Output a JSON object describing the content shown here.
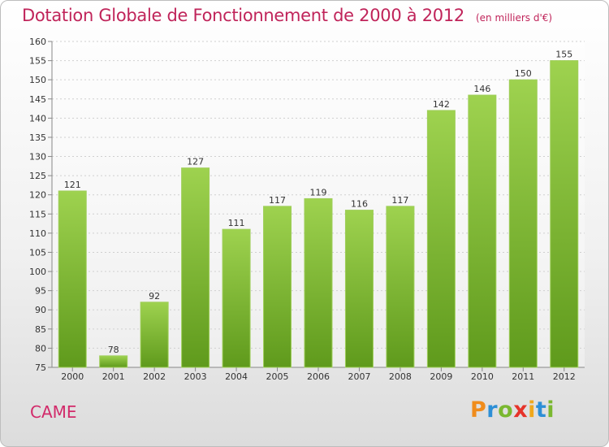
{
  "chart_data": {
    "type": "bar",
    "title": "Dotation Globale de Fonctionnement de 2000 à 2012",
    "subtitle": "(en milliers d'€)",
    "categories": [
      "2000",
      "2001",
      "2002",
      "2003",
      "2004",
      "2005",
      "2006",
      "2007",
      "2008",
      "2009",
      "2010",
      "2011",
      "2012"
    ],
    "values": [
      121,
      78,
      92,
      127,
      111,
      117,
      119,
      116,
      117,
      142,
      146,
      150,
      155
    ],
    "ylim": [
      75,
      160
    ],
    "yticks": [
      75,
      80,
      85,
      90,
      95,
      100,
      105,
      110,
      115,
      120,
      125,
      130,
      135,
      140,
      145,
      150,
      155,
      160
    ],
    "grid": true,
    "bar_color": "#7cbd2a"
  },
  "footer": {
    "commune": "CAME",
    "brand_letters": [
      "P",
      "r",
      "o",
      "x",
      "i",
      "t",
      "i"
    ],
    "brand_colors": [
      "#f08c1c",
      "#2d8fd6",
      "#7ab830",
      "#e6332a",
      "#f0a81c",
      "#2d8fd6",
      "#7ab830"
    ]
  }
}
